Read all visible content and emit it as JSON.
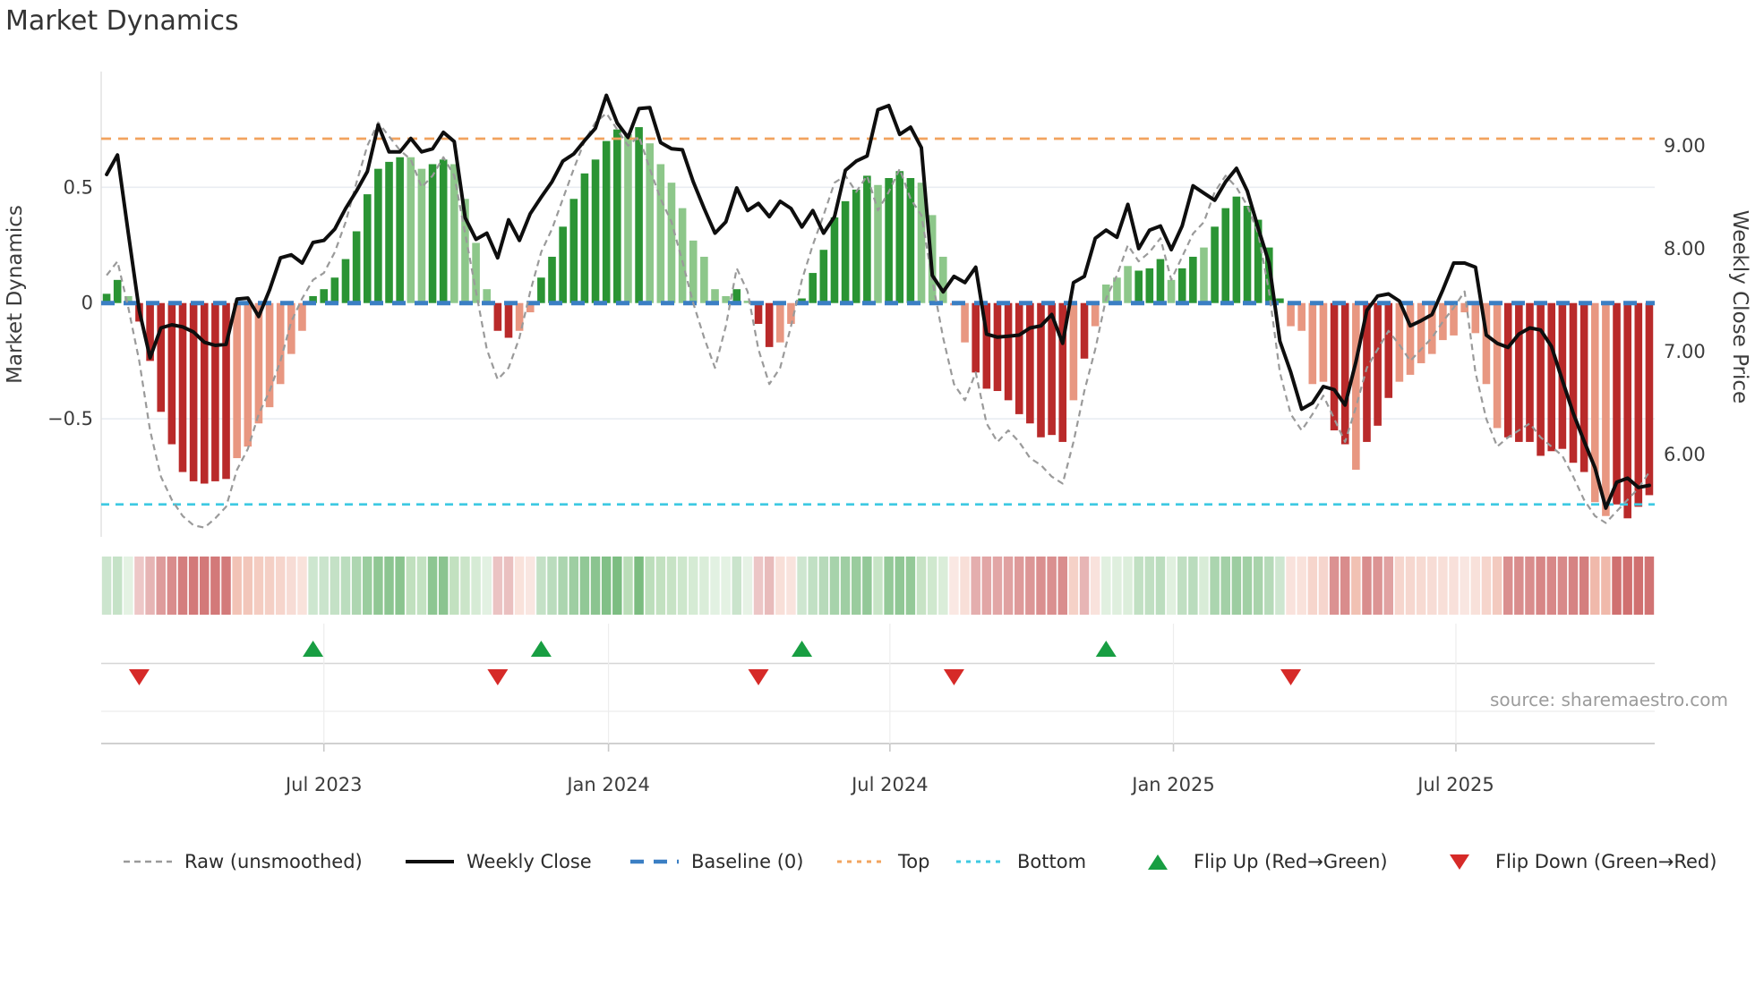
{
  "title": "Market Dynamics",
  "source": "source: sharemaestro.com",
  "left_axis": {
    "label": "Market Dynamics",
    "ticks": [
      {
        "value": 0.5,
        "label": "0.5"
      },
      {
        "value": 0,
        "label": "0"
      },
      {
        "value": -0.5,
        "label": "−0.5"
      }
    ]
  },
  "right_axis": {
    "label": "Weekly Close Price",
    "ticks": [
      {
        "value": 9,
        "label": "9.00"
      },
      {
        "value": 8,
        "label": "8.00"
      },
      {
        "value": 7,
        "label": "7.00"
      },
      {
        "value": 6,
        "label": "6.00"
      }
    ]
  },
  "legend": [
    "Raw (unsmoothed)",
    "Weekly Close",
    "Baseline (0)",
    "Top",
    "Bottom",
    "Flip Up (Red→Green)",
    "Flip Down (Green→Red)"
  ],
  "colors": {
    "bar_green_dark": "#2b9434",
    "bar_green_light": "#8dc78a",
    "bar_red_dark": "#b92a2a",
    "bar_red_light": "#e89781",
    "weekly_close": "#0e0e0e",
    "raw": "#9a9a9a",
    "baseline": "#3b7fc4",
    "top": "#f2a35e",
    "bottom": "#3ec9e2",
    "flip_up": "#189e42",
    "flip_down": "#d62a28",
    "grid": "#e9edf2",
    "lane_line": "#d6d6d6",
    "axis_spine": "#c9c9c9",
    "tick_text": "#3c3c3c"
  },
  "chart_data": {
    "type": "bar",
    "subtype": "weekly oscillator bars + dual-axis price line + heatmap strip + flip markers",
    "n_points": 143,
    "x_tick_labels": [
      "Jul 2023",
      "Jan 2024",
      "Jul 2024",
      "Jan 2025",
      "Jul 2025"
    ],
    "x_tick_indices": [
      20.0,
      46.2,
      72.1,
      98.2,
      124.2
    ],
    "ylim_left": [
      -1.01,
      1.0
    ],
    "ylim_right": [
      5.2,
      9.72
    ],
    "reference_lines": {
      "baseline": 0,
      "top": 0.71,
      "bottom": -0.87
    },
    "series": [
      {
        "name": "Oscillator (smoothed bars)",
        "axis": "left",
        "values": [
          0.04,
          0.1,
          0.03,
          -0.08,
          -0.25,
          -0.47,
          -0.61,
          -0.73,
          -0.77,
          -0.78,
          -0.77,
          -0.76,
          -0.67,
          -0.62,
          -0.52,
          -0.45,
          -0.35,
          -0.22,
          -0.12,
          0.03,
          0.06,
          0.11,
          0.19,
          0.31,
          0.47,
          0.58,
          0.61,
          0.63,
          0.63,
          0.58,
          0.6,
          0.62,
          0.6,
          0.45,
          0.26,
          0.06,
          -0.12,
          -0.15,
          -0.12,
          -0.04,
          0.11,
          0.2,
          0.33,
          0.45,
          0.56,
          0.62,
          0.7,
          0.75,
          0.73,
          0.76,
          0.69,
          0.6,
          0.52,
          0.41,
          0.27,
          0.2,
          0.06,
          0.03,
          0.06,
          0.01,
          -0.09,
          -0.19,
          -0.17,
          -0.09,
          0.02,
          0.13,
          0.23,
          0.37,
          0.44,
          0.49,
          0.55,
          0.51,
          0.54,
          0.57,
          0.54,
          0.52,
          0.38,
          0.2,
          -0.01,
          -0.17,
          -0.3,
          -0.37,
          -0.38,
          -0.42,
          -0.48,
          -0.52,
          -0.58,
          -0.57,
          -0.6,
          -0.42,
          -0.24,
          -0.1,
          0.08,
          0.11,
          0.16,
          0.14,
          0.15,
          0.19,
          0.1,
          0.15,
          0.2,
          0.24,
          0.33,
          0.41,
          0.46,
          0.42,
          0.36,
          0.24,
          0.02,
          -0.1,
          -0.12,
          -0.35,
          -0.34,
          -0.55,
          -0.61,
          -0.72,
          -0.6,
          -0.53,
          -0.41,
          -0.34,
          -0.31,
          -0.26,
          -0.22,
          -0.16,
          -0.14,
          -0.04,
          -0.13,
          -0.35,
          -0.54,
          -0.58,
          -0.6,
          -0.6,
          -0.66,
          -0.64,
          -0.63,
          -0.69,
          -0.73,
          -0.86,
          -0.92,
          -0.87,
          -0.93,
          -0.88,
          -0.83
        ],
        "shade": "ddldddddddddllllllldddddddddllddllllddllddddddddldlllllllldlddllddddddgldddllllldddddddddldlllldddlddldddddddllllddldddllllllllllddddddddlldddddlll"
      },
      {
        "name": "Raw (unsmoothed)",
        "axis": "left",
        "values": [
          0.12,
          0.18,
          -0.02,
          -0.25,
          -0.55,
          -0.75,
          -0.85,
          -0.92,
          -0.96,
          -0.97,
          -0.93,
          -0.88,
          -0.72,
          -0.63,
          -0.48,
          -0.38,
          -0.25,
          -0.08,
          0.02,
          0.1,
          0.13,
          0.22,
          0.35,
          0.52,
          0.68,
          0.78,
          0.72,
          0.66,
          0.62,
          0.5,
          0.55,
          0.63,
          0.55,
          0.3,
          0.05,
          -0.2,
          -0.33,
          -0.28,
          -0.15,
          0.05,
          0.22,
          0.32,
          0.45,
          0.58,
          0.7,
          0.78,
          0.82,
          0.75,
          0.68,
          0.72,
          0.58,
          0.45,
          0.35,
          0.18,
          0.0,
          -0.15,
          -0.28,
          -0.1,
          0.15,
          0.05,
          -0.2,
          -0.35,
          -0.28,
          -0.1,
          0.1,
          0.25,
          0.38,
          0.52,
          0.55,
          0.48,
          0.55,
          0.4,
          0.48,
          0.58,
          0.45,
          0.38,
          0.1,
          -0.15,
          -0.35,
          -0.42,
          -0.3,
          -0.52,
          -0.6,
          -0.55,
          -0.6,
          -0.67,
          -0.7,
          -0.75,
          -0.78,
          -0.6,
          -0.38,
          -0.2,
          0.02,
          0.12,
          0.25,
          0.18,
          0.22,
          0.28,
          0.1,
          0.2,
          0.3,
          0.35,
          0.48,
          0.55,
          0.5,
          0.42,
          0.3,
          0.05,
          -0.3,
          -0.48,
          -0.55,
          -0.48,
          -0.4,
          -0.5,
          -0.6,
          -0.45,
          -0.28,
          -0.2,
          -0.12,
          -0.18,
          -0.25,
          -0.2,
          -0.15,
          -0.08,
          -0.02,
          0.05,
          -0.3,
          -0.5,
          -0.62,
          -0.58,
          -0.55,
          -0.52,
          -0.58,
          -0.62,
          -0.66,
          -0.75,
          -0.85,
          -0.92,
          -0.95,
          -0.9,
          -0.85,
          -0.8,
          -0.73
        ]
      },
      {
        "name": "Weekly Close",
        "axis": "right",
        "values": [
          8.72,
          8.91,
          8.15,
          7.4,
          6.94,
          7.23,
          7.26,
          7.24,
          7.19,
          7.09,
          7.06,
          7.07,
          7.51,
          7.52,
          7.34,
          7.6,
          7.91,
          7.94,
          7.86,
          8.06,
          8.08,
          8.19,
          8.39,
          8.56,
          8.75,
          9.2,
          8.94,
          8.94,
          9.07,
          8.94,
          8.97,
          9.13,
          9.04,
          8.3,
          8.09,
          8.15,
          7.91,
          8.28,
          8.08,
          8.34,
          8.5,
          8.65,
          8.85,
          8.92,
          9.05,
          9.17,
          9.49,
          9.22,
          9.08,
          9.36,
          9.37,
          9.03,
          8.97,
          8.96,
          8.65,
          8.39,
          8.15,
          8.26,
          8.59,
          8.37,
          8.44,
          8.31,
          8.46,
          8.39,
          8.21,
          8.37,
          8.15,
          8.31,
          8.76,
          8.85,
          8.9,
          9.35,
          9.39,
          9.11,
          9.18,
          8.98,
          7.74,
          7.58,
          7.73,
          7.67,
          7.82,
          7.17,
          7.14,
          7.15,
          7.16,
          7.23,
          7.25,
          7.36,
          7.08,
          7.67,
          7.73,
          8.1,
          8.18,
          8.11,
          8.43,
          8.0,
          8.18,
          8.22,
          7.99,
          8.22,
          8.61,
          8.54,
          8.47,
          8.65,
          8.78,
          8.56,
          8.2,
          7.86,
          7.1,
          6.8,
          6.44,
          6.5,
          6.66,
          6.63,
          6.48,
          6.9,
          7.4,
          7.54,
          7.56,
          7.49,
          7.25,
          7.3,
          7.36,
          7.6,
          7.86,
          7.86,
          7.82,
          7.16,
          7.08,
          7.04,
          7.17,
          7.23,
          7.21,
          7.05,
          6.72,
          6.4,
          6.13,
          5.87,
          5.48,
          5.73,
          5.77,
          5.68,
          5.7
        ]
      }
    ],
    "heatmap_strip": "same oscillator values rendered as color-intensity cells below the plot",
    "flips": [
      {
        "index": 3,
        "direction": "down"
      },
      {
        "index": 19,
        "direction": "up"
      },
      {
        "index": 36,
        "direction": "down"
      },
      {
        "index": 40,
        "direction": "up"
      },
      {
        "index": 60,
        "direction": "down"
      },
      {
        "index": 64,
        "direction": "up"
      },
      {
        "index": 78,
        "direction": "down"
      },
      {
        "index": 92,
        "direction": "up"
      },
      {
        "index": 109,
        "direction": "down"
      }
    ]
  }
}
